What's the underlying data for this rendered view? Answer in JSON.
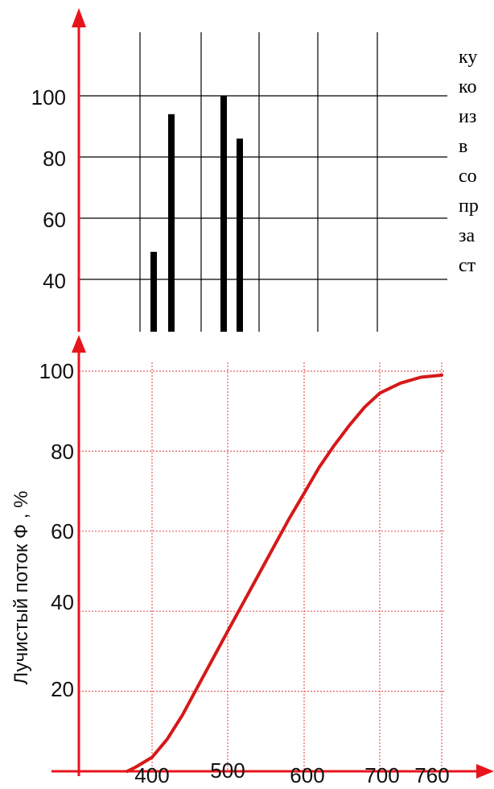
{
  "chart_data": [
    {
      "type": "bar",
      "title": "",
      "xlabel": "",
      "ylabel": "",
      "ylim": [
        30,
        120
      ],
      "yticks": [
        100,
        80,
        60,
        40
      ],
      "values": [
        49,
        94,
        100,
        86
      ],
      "grid": true,
      "colors": {
        "axis": "#e8141c",
        "bars": "#000000",
        "grid": "#000000"
      },
      "side_text": [
        "ку",
        "ко",
        "из",
        "в",
        "со",
        "пр",
        "за",
        "ст"
      ]
    },
    {
      "type": "line",
      "title": "",
      "xlabel": "",
      "ylabel": "Лучистый поток Ф  , %",
      "xlim": [
        370,
        760
      ],
      "ylim": [
        0,
        100
      ],
      "xticks": [
        400,
        500,
        600,
        700,
        760
      ],
      "yticks": [
        100,
        80,
        60,
        40,
        20
      ],
      "grid": true,
      "colors": {
        "axis": "#e8141c",
        "curve": "#d61818",
        "grid": "#e85c5c"
      },
      "series": [
        {
          "x": [
            370,
            380,
            400,
            420,
            440,
            460,
            480,
            500,
            520,
            540,
            560,
            580,
            600,
            620,
            640,
            660,
            680,
            700,
            720,
            740,
            760
          ],
          "y": [
            0,
            1,
            3.5,
            8,
            14,
            21,
            28,
            35,
            42,
            49,
            56,
            63,
            69.5,
            76,
            81.5,
            86.5,
            91,
            94.5,
            97,
            98.5,
            99
          ]
        }
      ]
    }
  ]
}
